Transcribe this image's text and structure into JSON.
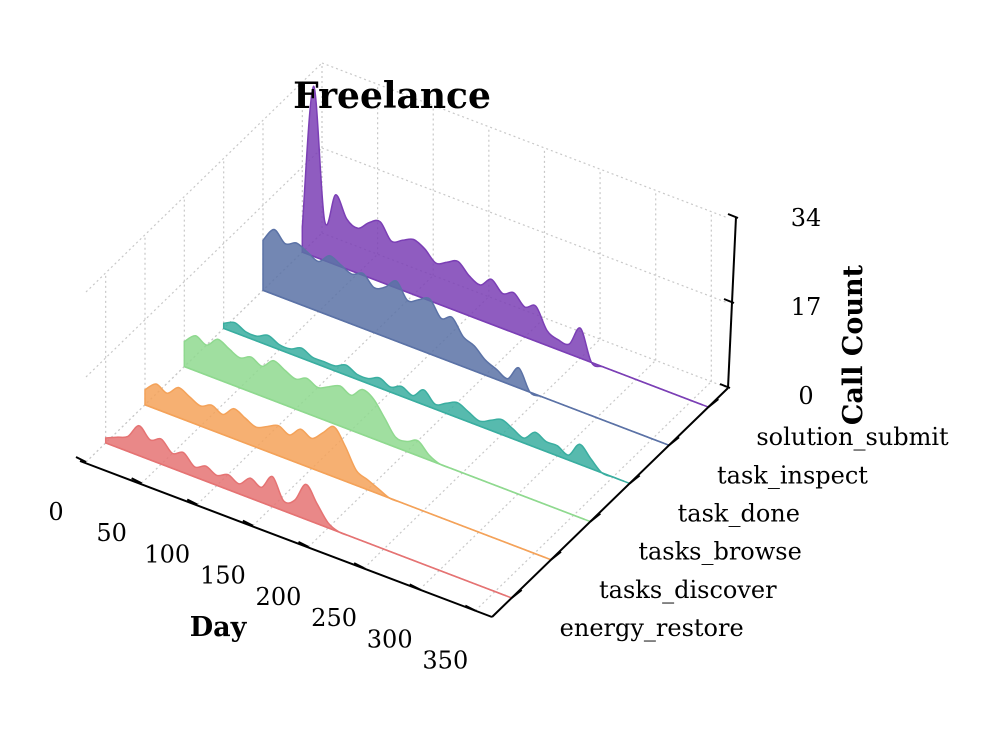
{
  "chart_data": {
    "type": "area",
    "title": "Freelance",
    "xlabel": "Day",
    "ylabel": "",
    "zlabel": "Call Count",
    "xlim": [
      0,
      365
    ],
    "zlim": [
      0,
      34
    ],
    "x_ticks": [
      "0",
      "50",
      "100",
      "150",
      "200",
      "250",
      "300",
      "350"
    ],
    "z_ticks": [
      "0",
      "17",
      "34"
    ],
    "series": [
      {
        "name": "energy_restore",
        "color": "#e57373",
        "x": [
          0,
          10,
          20,
          30,
          40,
          50,
          60,
          70,
          80,
          90,
          100,
          110,
          120,
          130,
          140,
          150,
          160,
          170,
          180,
          190,
          200,
          210,
          220,
          230,
          240,
          250,
          260,
          270,
          280,
          290,
          300,
          310,
          320,
          330,
          340,
          350,
          360
        ],
        "values": [
          1,
          2,
          3,
          6,
          4,
          5,
          3,
          4,
          2,
          3,
          2,
          3,
          2,
          4,
          3,
          6,
          2,
          3,
          7,
          4,
          1,
          0,
          0,
          0,
          0,
          0,
          0,
          0,
          0,
          0,
          0,
          0,
          0,
          0,
          0,
          0,
          0
        ]
      },
      {
        "name": "tasks_discover",
        "color": "#f4a259",
        "x": [
          0,
          10,
          20,
          30,
          40,
          50,
          60,
          70,
          80,
          90,
          100,
          110,
          120,
          130,
          140,
          150,
          160,
          170,
          180,
          190,
          200,
          210,
          220,
          230,
          240,
          250,
          260,
          270,
          280,
          290,
          300,
          310,
          320,
          330,
          340,
          350,
          360
        ],
        "values": [
          3,
          5,
          4,
          6,
          5,
          4,
          5,
          4,
          6,
          5,
          4,
          5,
          6,
          5,
          7,
          6,
          8,
          10,
          7,
          3,
          2,
          1,
          0,
          0,
          0,
          0,
          0,
          0,
          0,
          0,
          0,
          0,
          0,
          0,
          0,
          0,
          0
        ]
      },
      {
        "name": "tasks_browse",
        "color": "#8fd98f",
        "x": [
          0,
          10,
          20,
          30,
          40,
          50,
          60,
          70,
          80,
          90,
          100,
          110,
          120,
          130,
          140,
          150,
          160,
          170,
          180,
          190,
          200,
          210,
          220,
          230,
          240,
          250,
          260,
          270,
          280,
          290,
          300,
          310,
          320,
          330,
          340,
          350,
          360
        ],
        "values": [
          5,
          7,
          6,
          8,
          7,
          6,
          7,
          6,
          8,
          7,
          6,
          7,
          6,
          7,
          8,
          7,
          9,
          8,
          5,
          2,
          2,
          3,
          1,
          0,
          0,
          0,
          0,
          0,
          0,
          0,
          0,
          0,
          0,
          0,
          0,
          0,
          0
        ]
      },
      {
        "name": "task_done",
        "color": "#3aaea0",
        "x": [
          0,
          10,
          20,
          30,
          40,
          50,
          60,
          70,
          80,
          90,
          100,
          110,
          120,
          130,
          140,
          150,
          160,
          170,
          180,
          190,
          200,
          210,
          220,
          230,
          240,
          250,
          260,
          270,
          280,
          290,
          300,
          310,
          320,
          330,
          340,
          350,
          360
        ],
        "values": [
          1,
          2,
          1,
          1,
          2,
          1,
          1,
          2,
          1,
          1,
          1,
          2,
          1,
          1,
          2,
          1,
          2,
          1,
          3,
          1,
          2,
          3,
          2,
          1,
          2,
          3,
          2,
          1,
          3,
          2,
          2,
          1,
          4,
          2,
          0,
          0,
          0
        ]
      },
      {
        "name": "task_inspect",
        "color": "#5b72a6",
        "x": [
          0,
          10,
          20,
          30,
          40,
          50,
          60,
          70,
          80,
          90,
          100,
          110,
          120,
          130,
          140,
          150,
          160,
          170,
          180,
          190,
          200,
          210,
          220,
          230,
          240,
          250,
          260,
          270,
          280,
          290,
          300,
          310,
          320,
          330,
          340,
          350,
          360
        ],
        "values": [
          10,
          13,
          11,
          12,
          11,
          10,
          12,
          11,
          10,
          11,
          9,
          10,
          12,
          9,
          10,
          11,
          8,
          9,
          6,
          5,
          3,
          2,
          1,
          4,
          0,
          0,
          0,
          0,
          0,
          0,
          0,
          0,
          0,
          0,
          0,
          0,
          0
        ]
      },
      {
        "name": "solution_submit",
        "color": "#7b3fb5",
        "x": [
          0,
          10,
          20,
          30,
          40,
          50,
          60,
          70,
          80,
          90,
          100,
          110,
          120,
          130,
          140,
          150,
          160,
          170,
          180,
          190,
          200,
          210,
          220,
          230,
          240,
          250,
          260,
          270,
          280,
          290,
          300,
          310,
          320,
          330,
          340,
          350,
          360
        ],
        "values": [
          5,
          34,
          8,
          14,
          10,
          9,
          11,
          12,
          9,
          10,
          11,
          10,
          8,
          9,
          10,
          8,
          7,
          9,
          7,
          8,
          6,
          7,
          3,
          2,
          2,
          6,
          0,
          0,
          0,
          0,
          0,
          0,
          0,
          0,
          0,
          0,
          0
        ]
      }
    ]
  }
}
